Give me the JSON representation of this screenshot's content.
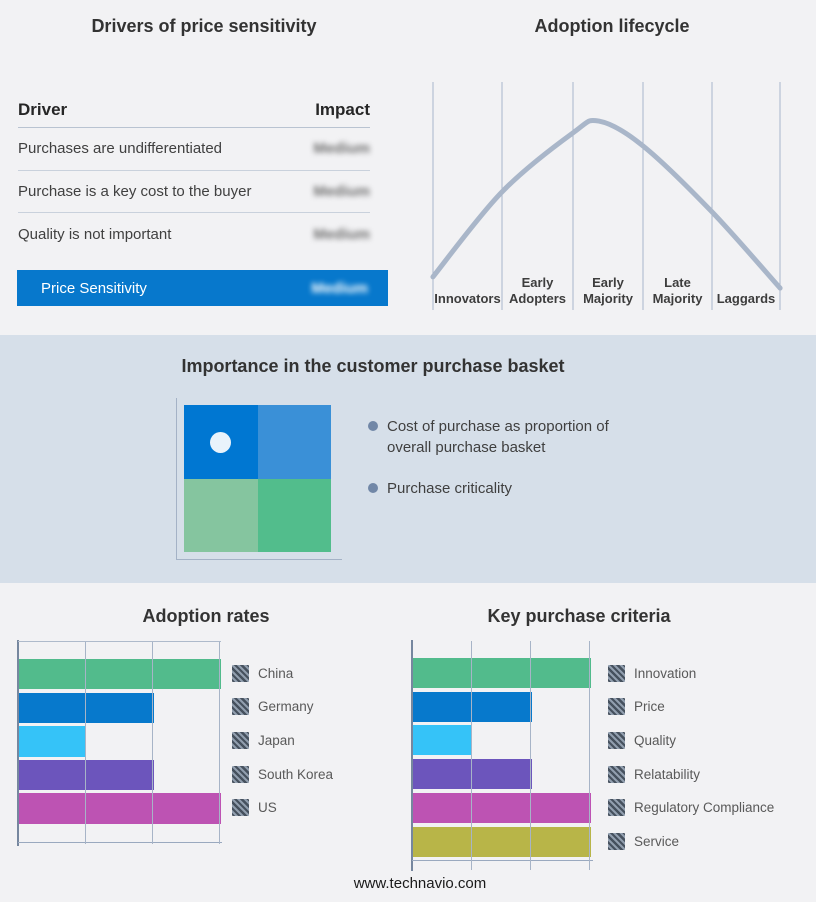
{
  "drivers_panel": {
    "title": "Drivers of price sensitivity",
    "columns": {
      "driver": "Driver",
      "impact": "Impact"
    },
    "rows": [
      {
        "driver": "Purchases are undifferentiated",
        "impact": "Medium"
      },
      {
        "driver": "Purchase is a key cost to the buyer",
        "impact": "Medium"
      },
      {
        "driver": "Quality is not important",
        "impact": "Medium"
      }
    ],
    "summary": {
      "label": "Price Sensitivity",
      "impact": "Medium"
    },
    "impact_values_blurred": true
  },
  "basket_panel": {
    "title": "Importance in the customer purchase basket",
    "bullets": [
      "Cost of purchase as proportion of overall purchase basket",
      "Purchase criticality"
    ],
    "quadrant_colors": {
      "tl": "#0077d2",
      "tr": "#3a90d7",
      "bl": "#85c59f",
      "br": "#52bd8c"
    },
    "marker_color": "#e9f3fb",
    "marker_quadrant": "top-left"
  },
  "chart_data": [
    {
      "id": "adoption_lifecycle",
      "type": "line",
      "title": "Adoption lifecycle",
      "categories": [
        "Innovators",
        "Early Adopters",
        "Early Majority",
        "Late Majority",
        "Laggards"
      ],
      "description": "Bell curve peaking over the Early Majority segment",
      "curve_points_frac": [
        [
          0.061,
          0.839
        ],
        [
          0.23,
          0.582
        ],
        [
          0.404,
          0.403
        ],
        [
          0.468,
          0.367
        ],
        [
          0.576,
          0.442
        ],
        [
          0.745,
          0.642
        ],
        [
          0.912,
          0.873
        ]
      ],
      "line_color": "#a9b6c9",
      "grid": true,
      "legend_position": "none"
    },
    {
      "id": "adoption_rates",
      "type": "bar",
      "title": "Adoption rates",
      "orientation": "horizontal",
      "categories": [
        "China",
        "Germany",
        "Japan",
        "South Korea",
        "US"
      ],
      "values": [
        3,
        2,
        1,
        2,
        3
      ],
      "xlim": [
        0,
        3
      ],
      "xlabel": "",
      "ylabel": "",
      "grid": true,
      "colors": [
        "#52bb8c",
        "#0779cc",
        "#35c3f8",
        "#6c55bc",
        "#bd53b3"
      ],
      "legend_position": "right"
    },
    {
      "id": "key_purchase_criteria",
      "type": "bar",
      "title": "Key purchase criteria",
      "orientation": "horizontal",
      "categories": [
        "Innovation",
        "Price",
        "Quality",
        "Relatability",
        "Regulatory Compliance",
        "Service"
      ],
      "values": [
        3,
        2,
        1,
        2,
        3,
        3
      ],
      "xlim": [
        0,
        3
      ],
      "xlabel": "",
      "ylabel": "",
      "grid": true,
      "colors": [
        "#52bb8c",
        "#0779cc",
        "#35c3f8",
        "#6c55bc",
        "#bd53b3",
        "#b8b548"
      ],
      "legend_position": "right"
    }
  ],
  "footer": {
    "url": "www.technavio.com"
  },
  "colors": {
    "page_background": "#f2f2f4",
    "band_background": "#d6dfe9",
    "accent_blue": "#0778cc",
    "curve": "#a9b6c9",
    "legend_text": "#595959",
    "bullet_dot": "#7187a7"
  }
}
